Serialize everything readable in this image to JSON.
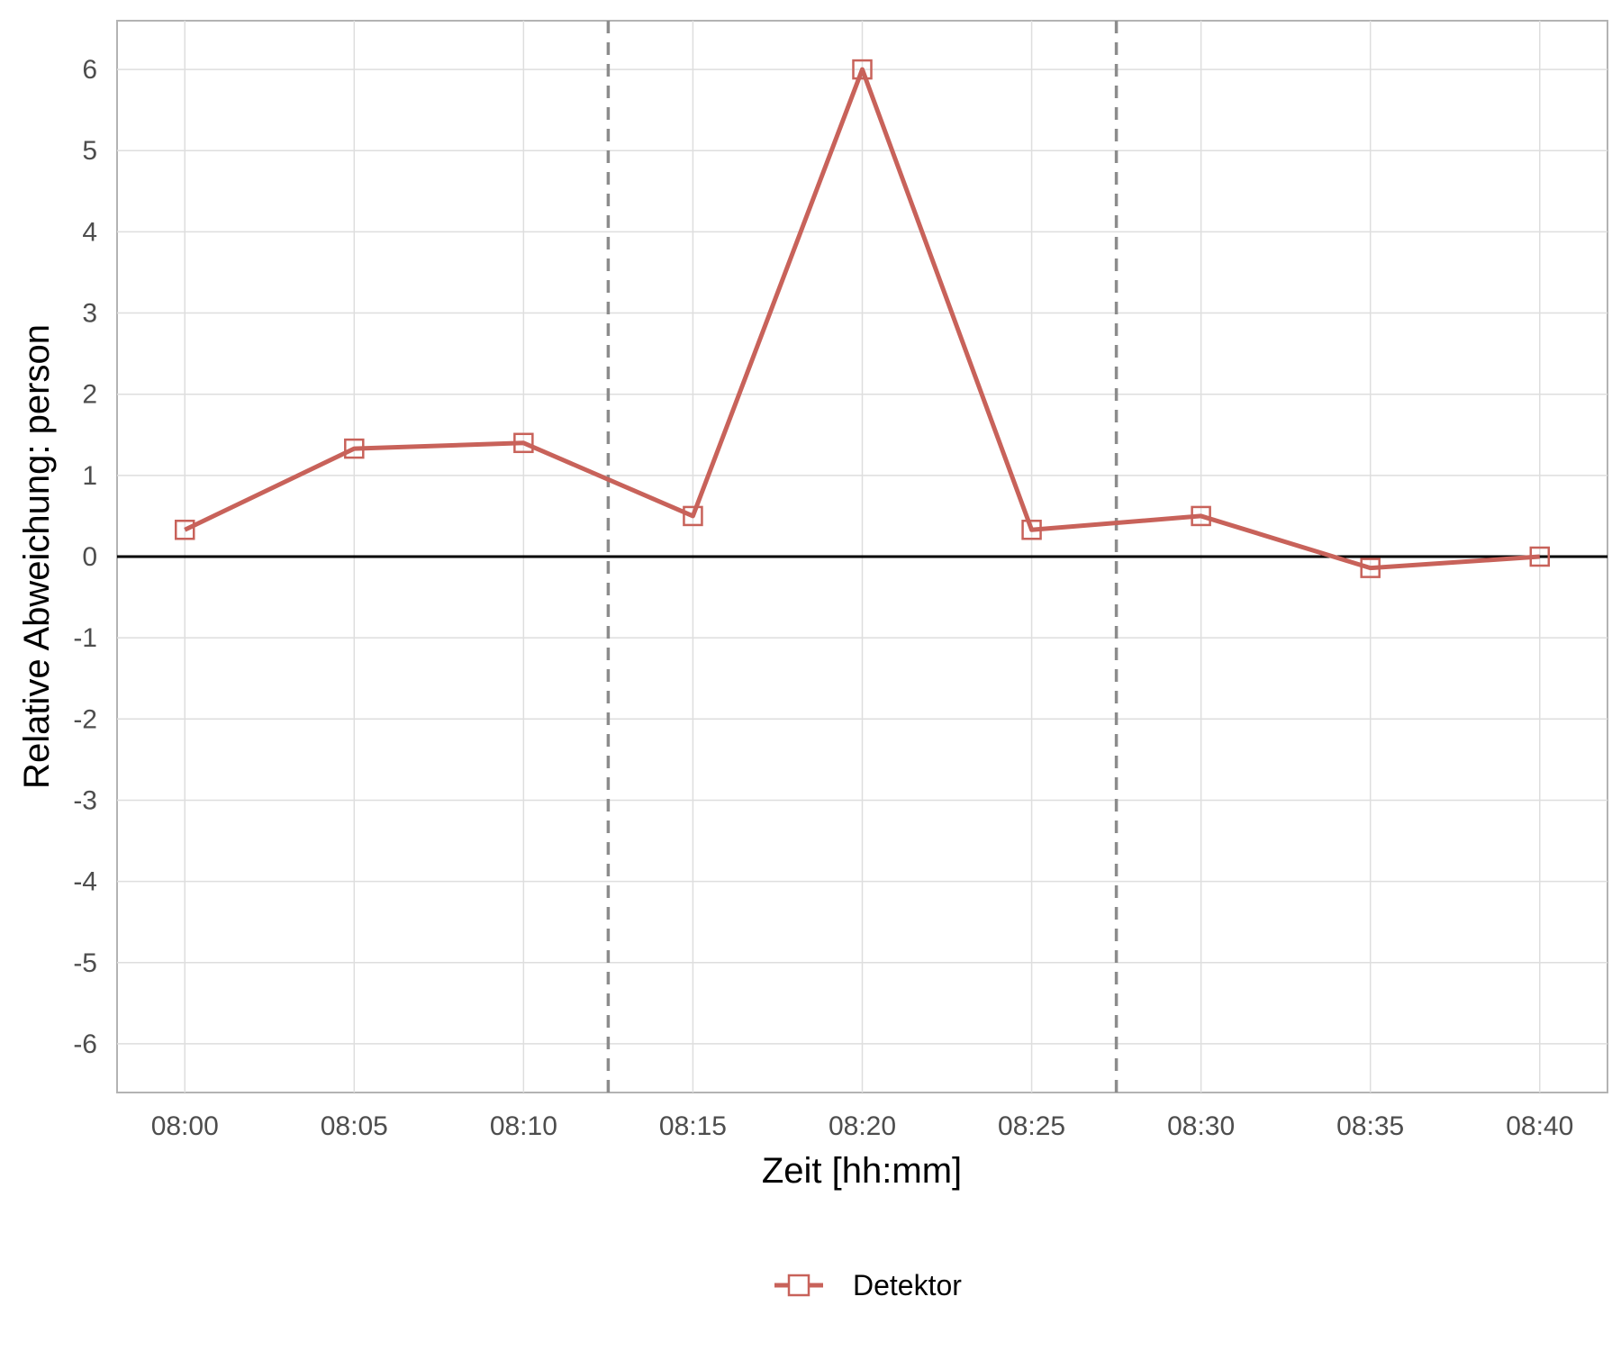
{
  "chart_data": {
    "type": "line",
    "title": "",
    "xlabel": "Zeit [hh:mm]",
    "ylabel": "Relative Abweichung: person",
    "x": [
      "08:00",
      "08:05",
      "08:10",
      "08:15",
      "08:20",
      "08:25",
      "08:30",
      "08:35",
      "08:40"
    ],
    "x_tick_labels": [
      "08:00",
      "08:05",
      "08:10",
      "08:15",
      "08:20",
      "08:25",
      "08:30",
      "08:35",
      "08:40"
    ],
    "series": [
      {
        "name": "Detektor",
        "values": [
          0.33,
          1.33,
          1.4,
          0.5,
          6.0,
          0.33,
          0.5,
          -0.14,
          0.0
        ],
        "color": "#c8625a",
        "marker": "open-square"
      }
    ],
    "y_ticks": [
      -6,
      -5,
      -4,
      -3,
      -2,
      -1,
      0,
      1,
      2,
      3,
      4,
      5,
      6
    ],
    "ylim": [
      -6.6,
      6.6
    ],
    "xlim": [
      "07:58",
      "08:42"
    ],
    "vertical_reference_lines": [
      {
        "x": "08:12:30",
        "style": "dashed",
        "color": "#8c8c8c"
      },
      {
        "x": "08:27:30",
        "style": "dashed",
        "color": "#8c8c8c"
      }
    ],
    "horizontal_reference_line": {
      "y": 0,
      "color": "#000000"
    },
    "grid": true,
    "legend_position": "bottom"
  }
}
